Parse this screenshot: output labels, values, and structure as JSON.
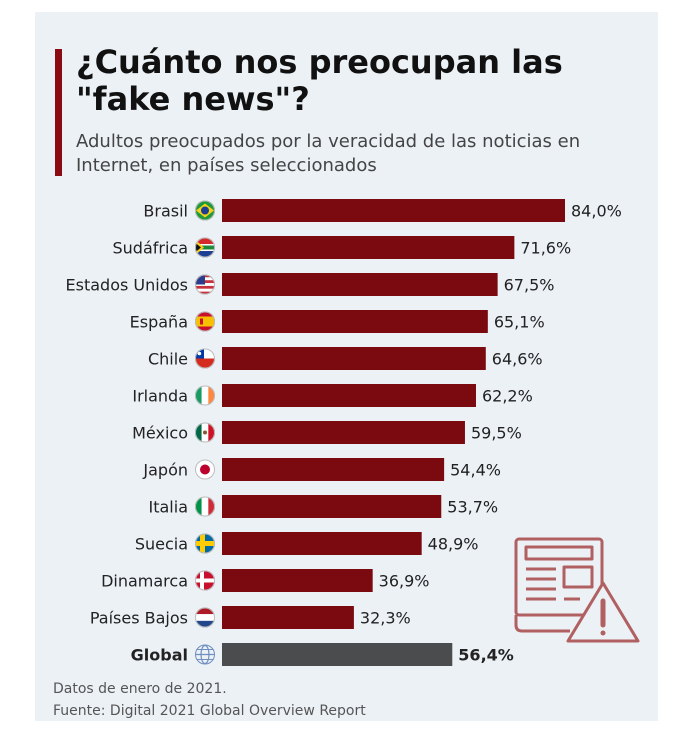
{
  "header": {
    "title": "¿Cuánto nos preocupan las \"fake news\"?",
    "subtitle": "Adultos preocupados por la veracidad de las noticias en Internet, en países seleccionados"
  },
  "footer": {
    "note": "Datos de enero de 2021.",
    "source": "Fuente: Digital 2021 Global Overview Report"
  },
  "colors": {
    "bar": "#7a0a0f",
    "global_bar": "#4a4c4d",
    "accent": "#8a0c12",
    "illustration": "#b06060"
  },
  "chart_data": {
    "type": "bar",
    "orientation": "horizontal",
    "xlim": [
      0,
      84
    ],
    "grid": false,
    "legend": "none",
    "categories": [
      "Brasil",
      "Sudáfrica",
      "Estados Unidos",
      "España",
      "Chile",
      "Irlanda",
      "México",
      "Japón",
      "Italia",
      "Suecia",
      "Dinamarca",
      "Países Bajos",
      "Global"
    ],
    "values": [
      84.0,
      71.6,
      67.5,
      65.1,
      64.6,
      62.2,
      59.5,
      54.4,
      53.7,
      48.9,
      36.9,
      32.3,
      56.4
    ],
    "value_labels": [
      "84,0%",
      "71,6%",
      "67,5%",
      "65,1%",
      "64,6%",
      "62,2%",
      "59,5%",
      "54,4%",
      "53,7%",
      "48,9%",
      "36,9%",
      "32,3%",
      "56,4%"
    ],
    "flag_icons": [
      "brazil-flag-icon",
      "south-africa-flag-icon",
      "usa-flag-icon",
      "spain-flag-icon",
      "chile-flag-icon",
      "ireland-flag-icon",
      "mexico-flag-icon",
      "japan-flag-icon",
      "italy-flag-icon",
      "sweden-flag-icon",
      "denmark-flag-icon",
      "netherlands-flag-icon",
      "globe-icon"
    ],
    "highlight_category": "Global"
  }
}
